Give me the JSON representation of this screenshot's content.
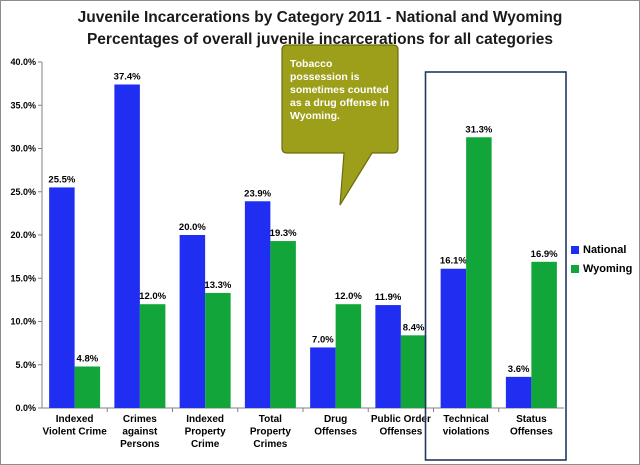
{
  "chart_data": {
    "type": "bar",
    "title": "Juvenile Incarcerations by Category 2011 - National and Wyoming",
    "subtitle": "Percentages of overall juvenile incarcerations for all categories",
    "categories": [
      [
        "Indexed",
        "Violent Crime"
      ],
      [
        "Crimes",
        "against",
        "Persons"
      ],
      [
        "Indexed",
        "Property",
        "Crime"
      ],
      [
        "Total",
        "Property",
        "Crimes"
      ],
      [
        "Drug",
        "Offenses"
      ],
      [
        "Public Order",
        "Offenses"
      ],
      [
        "Technical",
        "violations"
      ],
      [
        "Status",
        "Offenses"
      ]
    ],
    "series": [
      {
        "name": "National",
        "color": "#1f2ef0",
        "values": [
          25.5,
          37.4,
          20.0,
          23.9,
          7.0,
          11.9,
          16.1,
          3.6
        ]
      },
      {
        "name": "Wyoming",
        "color": "#12a63a",
        "values": [
          4.8,
          12.0,
          13.3,
          19.3,
          12.0,
          8.4,
          31.3,
          16.9
        ]
      }
    ],
    "ylim": [
      0,
      40
    ],
    "yticks": [
      "0.0%",
      "5.0%",
      "10.0%",
      "15.0%",
      "20.0%",
      "25.0%",
      "30.0%",
      "35.0%",
      "40.0%"
    ],
    "grid": false,
    "legend": "right",
    "highlight_box": "Technical violations and Status Offenses",
    "annotation": "Tobacco possession is sometimes counted as a drug offense in Wyoming."
  }
}
